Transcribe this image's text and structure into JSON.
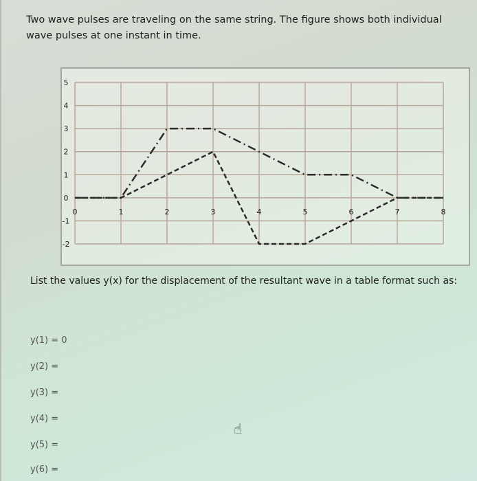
{
  "question": {
    "intro": "Two wave pulses are traveling on the same string. The figure shows both individual wave pulses at one instant in time.",
    "prompt": "List the values y(x) for the displacement of the resultant wave in a table format such as:",
    "answers": [
      "y(1) = 0",
      "y(2) =",
      "y(3) =",
      "y(4) =",
      "y(5) =",
      "y(6) ="
    ]
  },
  "chart_data": {
    "type": "line",
    "title": "",
    "xlabel": "",
    "ylabel": "",
    "xlim": [
      0,
      8
    ],
    "ylim": [
      -2,
      5
    ],
    "x_ticks": [
      "0",
      "1",
      "2",
      "3",
      "4",
      "5",
      "6",
      "7",
      "8"
    ],
    "y_ticks": [
      "5",
      "4",
      "3",
      "2",
      "1",
      "0",
      "-1",
      "-2"
    ],
    "grid": true,
    "series": [
      {
        "style": "dash-dot",
        "color": "#2b2b2b",
        "points": [
          [
            0,
            0
          ],
          [
            1,
            0
          ],
          [
            2,
            3
          ],
          [
            3,
            3
          ],
          [
            4,
            2
          ],
          [
            5,
            1
          ],
          [
            6,
            1
          ],
          [
            7,
            0
          ],
          [
            8,
            0
          ]
        ]
      },
      {
        "style": "dashed",
        "color": "#2b2b2b",
        "points": [
          [
            0,
            0
          ],
          [
            1,
            0
          ],
          [
            3,
            2
          ],
          [
            4,
            -2
          ],
          [
            5,
            -2
          ],
          [
            7,
            0
          ],
          [
            8,
            0
          ]
        ]
      }
    ]
  },
  "colors": {
    "grid": "#b9a89a",
    "line": "#2b2b2b"
  },
  "cursor": {
    "icon": "hand-pointer-icon"
  }
}
